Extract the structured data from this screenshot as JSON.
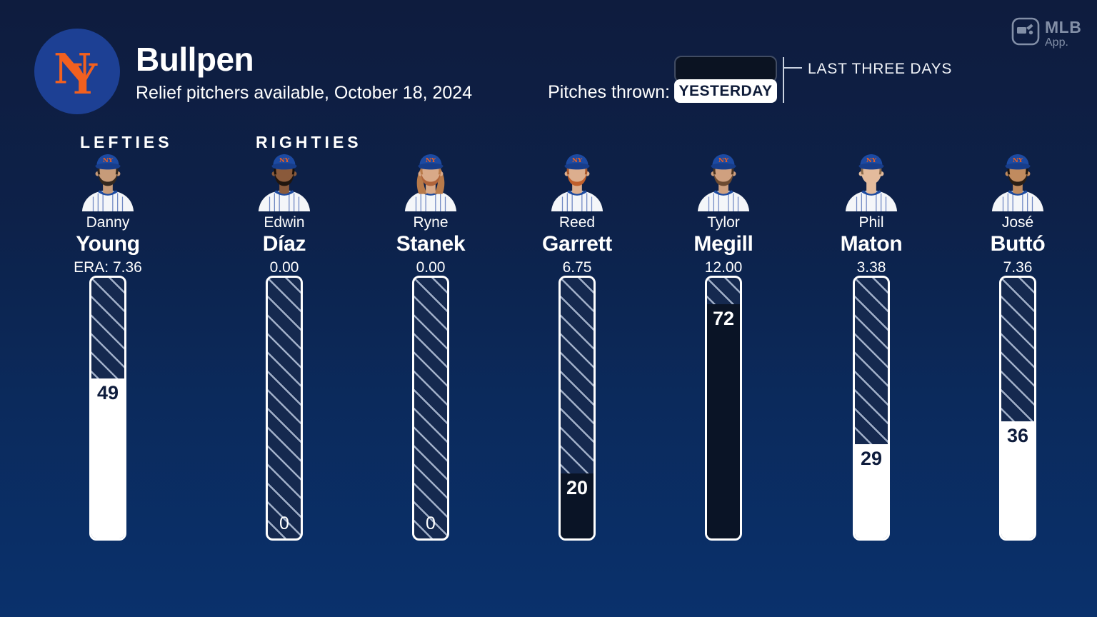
{
  "header": {
    "title": "Bullpen",
    "subtitle": "Relief pitchers available, October 18, 2024",
    "team": "New York Mets",
    "team_monogram_n": "N",
    "team_monogram_y": "Y",
    "legend": {
      "label": "Pitches thrown:",
      "selected": "YESTERDAY",
      "alternate": "LAST THREE DAYS"
    },
    "app_badge": {
      "line1": "MLB",
      "line2": "App."
    }
  },
  "sections": {
    "lefties": "LEFTIES",
    "righties": "RIGHTIES"
  },
  "colors": {
    "accent_orange": "#f2601f",
    "mets_blue": "#1d4094",
    "bar_dark_fill": "#0a1426",
    "bar_white_fill": "#ffffff",
    "hatch_bg": "#15294f",
    "hatch_line": "#b9c7de",
    "background_top": "#0e1c3e",
    "background_bottom": "#0a316c"
  },
  "scale_max": 80,
  "players": [
    {
      "first": "Danny",
      "last": "Young",
      "era": "ERA: 7.36",
      "pitches": 49,
      "fill": "white",
      "section": "lefties",
      "avatar": {
        "skin": "#c79b79",
        "beard": "#33281f",
        "hair": "#2e241c",
        "long_hair": false
      }
    },
    {
      "first": "Edwin",
      "last": "Díaz",
      "era": "0.00",
      "pitches": 0,
      "fill": "none",
      "section": "righties",
      "avatar": {
        "skin": "#8a5a3b",
        "beard": "#20150e",
        "hair": "#17100a",
        "long_hair": false
      }
    },
    {
      "first": "Ryne",
      "last": "Stanek",
      "era": "0.00",
      "pitches": 0,
      "fill": "none",
      "section": "righties",
      "avatar": {
        "skin": "#d9a988",
        "beard": "#b0643a",
        "hair": "#b87a4a",
        "long_hair": true
      }
    },
    {
      "first": "Reed",
      "last": "Garrett",
      "era": "6.75",
      "pitches": 20,
      "fill": "dark",
      "section": "righties",
      "avatar": {
        "skin": "#dcae8e",
        "beard": "#bf5f2c",
        "hair": "#a8562a",
        "long_hair": false
      }
    },
    {
      "first": "Tylor",
      "last": "Megill",
      "era": "12.00",
      "pitches": 72,
      "fill": "dark",
      "section": "righties",
      "avatar": {
        "skin": "#cfa07f",
        "beard": "#6d4b31",
        "hair": "#4a3422",
        "long_hair": false
      }
    },
    {
      "first": "Phil",
      "last": "Maton",
      "era": "3.38",
      "pitches": 29,
      "fill": "white",
      "section": "righties",
      "avatar": {
        "skin": "#e3bb9c",
        "beard": null,
        "hair": "#8a6a4a",
        "long_hair": false
      }
    },
    {
      "first": "José",
      "last": "Buttó",
      "era": "7.36",
      "pitches": 36,
      "fill": "white",
      "section": "righties",
      "avatar": {
        "skin": "#c08b5f",
        "beard": "#2a1e15",
        "hair": "#1c140d",
        "long_hair": false
      }
    }
  ],
  "chart_data": {
    "type": "bar",
    "title": "Bullpen",
    "subtitle": "Relief pitchers available, October 18, 2024",
    "metric_label": "Pitches thrown",
    "orientation": "vertical",
    "legend": [
      {
        "label": "YESTERDAY",
        "swatch": "white"
      },
      {
        "label": "LAST THREE DAYS",
        "swatch": "dark"
      }
    ],
    "legend_position": "top",
    "ylim": [
      0,
      80
    ],
    "categories": [
      "Danny Young",
      "Edwin Díaz",
      "Ryne Stanek",
      "Reed Garrett",
      "Tylor Megill",
      "Phil Maton",
      "José Buttó"
    ],
    "groups": [
      "LEFTIES",
      "RIGHTIES",
      "RIGHTIES",
      "RIGHTIES",
      "RIGHTIES",
      "RIGHTIES",
      "RIGHTIES"
    ],
    "eras": [
      "7.36",
      "0.00",
      "0.00",
      "6.75",
      "12.00",
      "3.38",
      "7.36"
    ],
    "values": [
      49,
      0,
      0,
      20,
      72,
      29,
      36
    ],
    "fill_styles": [
      "white",
      "none",
      "none",
      "dark",
      "dark",
      "white",
      "white"
    ]
  }
}
